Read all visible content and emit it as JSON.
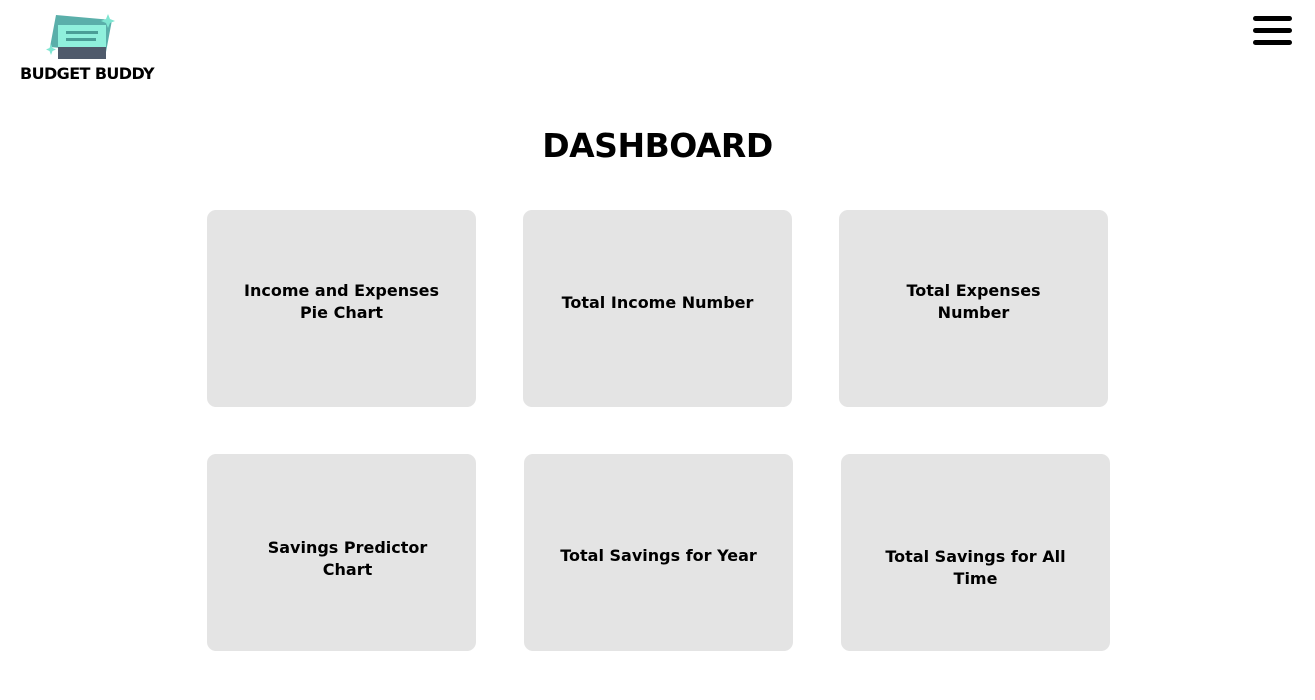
{
  "logo": {
    "text": "BUDGET BUDDY",
    "icon": "money-cards-icon",
    "colors": {
      "dark_card": "#5aafaa",
      "light_card": "#7fe6d2",
      "stripe": "#4a9e97",
      "base": "#4f5a6b",
      "sparkle": "#7fe6d2"
    }
  },
  "header": {
    "menu_icon": "hamburger-menu-icon"
  },
  "main": {
    "title": "DASHBOARD",
    "cards": [
      {
        "label": "Income and Expenses\nPie Chart"
      },
      {
        "label": "Total Income Number"
      },
      {
        "label": "Total Expenses\nNumber"
      },
      {
        "label": "Savings Predictor\nChart"
      },
      {
        "label": "Total Savings for Year"
      },
      {
        "label": "Total Savings for All\nTime"
      }
    ]
  },
  "colors": {
    "card_background": "#e4e4e4",
    "page_background": "#ffffff",
    "text": "#000000"
  }
}
